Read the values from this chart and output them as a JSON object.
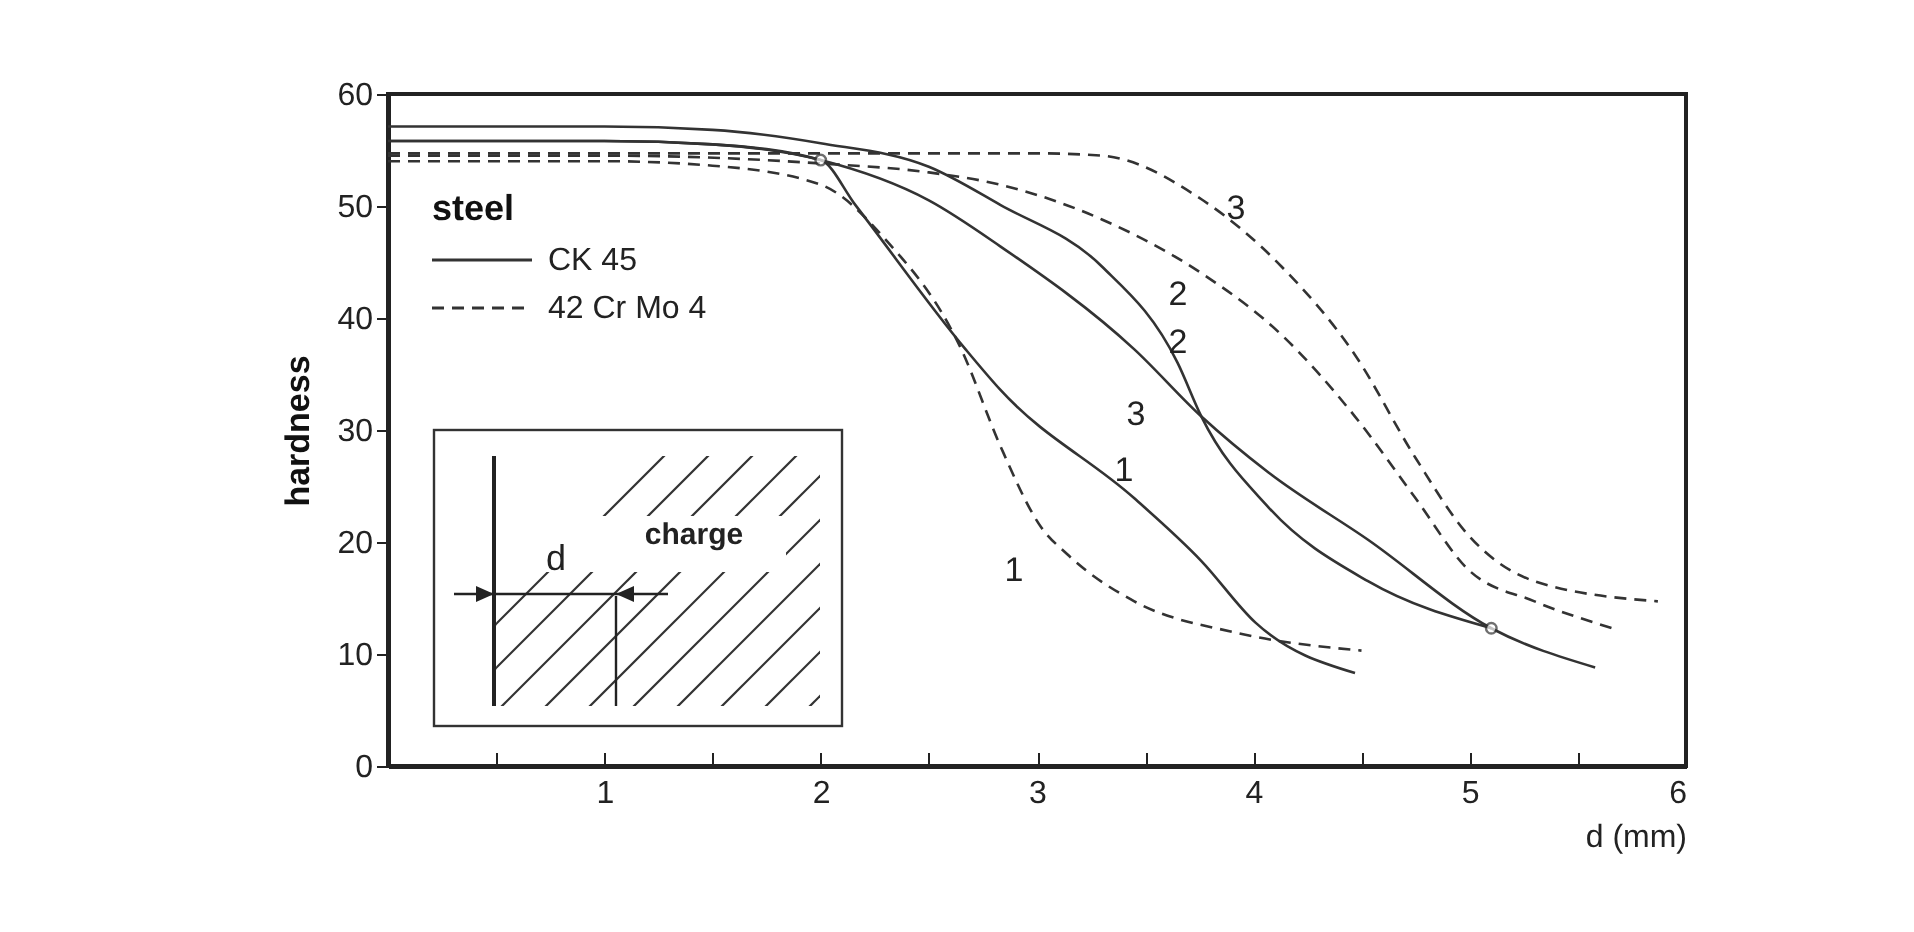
{
  "chart_data": {
    "type": "line",
    "xlabel": "d (mm)",
    "ylabel": "hardness",
    "legend_title": "steel",
    "legend": "top left",
    "grid": false,
    "xlim": [
      0,
      6
    ],
    "ylim": [
      0,
      60
    ],
    "xticks": [
      {
        "value": 0,
        "label": null
      },
      {
        "value": 0.5,
        "label": null
      },
      1,
      {
        "value": 1.5,
        "label": null
      },
      2,
      {
        "value": 2.5,
        "label": null
      },
      3,
      {
        "value": 3.5,
        "label": null
      },
      4,
      {
        "value": 4.5,
        "label": null
      },
      5,
      {
        "value": 5.5,
        "label": null
      },
      6
    ],
    "yticks": [
      0,
      10,
      20,
      30,
      40,
      50,
      60
    ],
    "series": [
      {
        "name": "CK 45",
        "color": "#333333",
        "line_style": "solid",
        "x": [
          0,
          1,
          1.5,
          2,
          2.16,
          2.67,
          2.83,
          3.45,
          3.76,
          4.01,
          4.47
        ],
        "values": [
          55.8,
          55.8,
          55.5,
          54.1,
          50.1,
          37.2,
          33.6,
          23.9,
          18.3,
          12.8,
          8.3
        ]
      },
      {
        "color": "#333333",
        "line_style": "solid",
        "x": [
          0,
          1,
          1.5,
          2,
          2.5,
          2.83,
          3.3,
          3.65,
          3.76,
          4.07,
          4.53,
          5.1
        ],
        "values": [
          57.1,
          57.1,
          56.8,
          55.6,
          53.5,
          50.1,
          44.6,
          36,
          31.2,
          23.1,
          16.5,
          12.3
        ]
      },
      {
        "color": "#333333",
        "line_style": "solid",
        "x": [
          0,
          1,
          1.5,
          2,
          2.5,
          2.83,
          3.45,
          3.76,
          4.07,
          4.53,
          5.1,
          5.58
        ],
        "values": [
          55.8,
          55.8,
          55.5,
          54.1,
          50.5,
          46.4,
          37.2,
          31.2,
          26.2,
          20.2,
          12.3,
          8.8
        ]
      },
      {
        "name": "42 Cr Mo 4",
        "color": "#333333",
        "line_style": "dashed",
        "x": [
          0,
          1,
          1.5,
          2,
          2.3,
          2.65,
          2.83,
          3.02,
          3.14,
          3.45,
          3.92,
          4.5
        ],
        "values": [
          54,
          54,
          53.6,
          51.9,
          47,
          37.2,
          28.6,
          21.3,
          18.9,
          14.7,
          11.9,
          10.3
        ]
      },
      {
        "color": "#333333",
        "line_style": "dashed",
        "x": [
          0,
          1,
          2,
          2.5,
          2.83,
          3.3,
          3.76,
          4.13,
          4.47,
          4.75,
          4.99,
          5.3,
          5.66
        ],
        "values": [
          54.5,
          54.5,
          53.8,
          53,
          51.9,
          48.8,
          44,
          38.5,
          31.2,
          23.9,
          17.6,
          14.7,
          12.3
        ]
      },
      {
        "color": "#333333",
        "line_style": "dashed",
        "x": [
          0,
          1,
          2,
          3,
          3.3,
          3.76,
          4.13,
          4.47,
          4.75,
          4.99,
          5.3,
          5.87
        ],
        "values": [
          54.7,
          54.7,
          54.7,
          54.7,
          54.5,
          50.6,
          44.6,
          36.7,
          27.5,
          20.7,
          16.5,
          14.7
        ]
      },
      {
        "type": "scatter",
        "marker": "circle",
        "color": "#333333",
        "x": [
          2,
          5.1
        ],
        "values": [
          54.1,
          12.3
        ]
      }
    ],
    "annotations": [
      "3",
      "2",
      "2",
      "3",
      "1",
      "1",
      "d",
      "charge"
    ]
  }
}
